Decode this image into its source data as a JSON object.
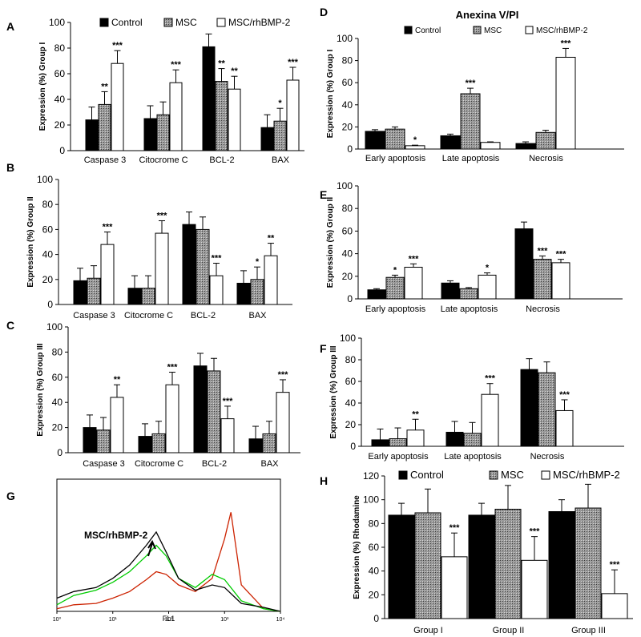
{
  "legend_labels": [
    "Control",
    "MSC",
    "MSC/rhBMP-2"
  ],
  "series_fills": [
    "#000000",
    "pattern-gray",
    "#ffffff"
  ],
  "chart_data": [
    {
      "panel": "A",
      "type": "bar",
      "title": "",
      "ylabel": "Expression (%) Group I",
      "ylim": [
        0,
        100
      ],
      "yticks": [
        0,
        20,
        40,
        60,
        80,
        100
      ],
      "categories": [
        "Caspase 3",
        "Citocrome C",
        "BCL-2",
        "BAX"
      ],
      "series": [
        {
          "name": "Control",
          "values": [
            24,
            25,
            81,
            18
          ],
          "errors": [
            10,
            10,
            10,
            10
          ]
        },
        {
          "name": "MSC",
          "values": [
            36,
            28,
            54,
            23
          ],
          "errors": [
            10,
            10,
            10,
            10
          ]
        },
        {
          "name": "MSC/rhBMP-2",
          "values": [
            68,
            53,
            48,
            55
          ],
          "errors": [
            10,
            10,
            10,
            10
          ]
        }
      ],
      "annotations": [
        [
          "",
          "**",
          "***"
        ],
        [
          "",
          "",
          "***"
        ],
        [
          "",
          "**",
          "**"
        ],
        [
          "",
          "*",
          "***"
        ]
      ],
      "legend": "top"
    },
    {
      "panel": "B",
      "type": "bar",
      "title": "",
      "ylabel": "Expression (%) Group II",
      "ylim": [
        0,
        100
      ],
      "yticks": [
        0,
        20,
        40,
        60,
        80,
        100
      ],
      "categories": [
        "Caspase 3",
        "Citocrome C",
        "BCL-2",
        "BAX"
      ],
      "series": [
        {
          "name": "Control",
          "values": [
            19,
            13,
            64,
            17
          ],
          "errors": [
            10,
            10,
            10,
            10
          ]
        },
        {
          "name": "MSC",
          "values": [
            21,
            13,
            60,
            20
          ],
          "errors": [
            10,
            10,
            10,
            10
          ]
        },
        {
          "name": "MSC/rhBMP-2",
          "values": [
            48,
            57,
            23,
            39
          ],
          "errors": [
            10,
            10,
            10,
            10
          ]
        }
      ],
      "annotations": [
        [
          "",
          "",
          "***"
        ],
        [
          "",
          "",
          "***"
        ],
        [
          "",
          "",
          "***"
        ],
        [
          "",
          "*",
          "**"
        ]
      ]
    },
    {
      "panel": "C",
      "type": "bar",
      "title": "",
      "ylabel": "Expression (%) Group III",
      "ylim": [
        0,
        100
      ],
      "yticks": [
        0,
        20,
        40,
        60,
        80,
        100
      ],
      "categories": [
        "Caspase 3",
        "Citocrome C",
        "BCL-2",
        "BAX"
      ],
      "series": [
        {
          "name": "Control",
          "values": [
            20,
            13,
            69,
            11
          ],
          "errors": [
            10,
            10,
            10,
            10
          ]
        },
        {
          "name": "MSC",
          "values": [
            18,
            15,
            65,
            15
          ],
          "errors": [
            10,
            10,
            10,
            10
          ]
        },
        {
          "name": "MSC/rhBMP-2",
          "values": [
            44,
            54,
            27,
            48
          ],
          "errors": [
            10,
            10,
            10,
            10
          ]
        }
      ],
      "annotations": [
        [
          "",
          "",
          "**"
        ],
        [
          "",
          "",
          "***"
        ],
        [
          "",
          "",
          "***"
        ],
        [
          "",
          "",
          "***"
        ]
      ]
    },
    {
      "panel": "D",
      "type": "bar",
      "title": "Anexina V/PI",
      "ylabel": "Expression (%) Group I",
      "ylim": [
        0,
        100
      ],
      "yticks": [
        0,
        20,
        40,
        60,
        80,
        100
      ],
      "categories": [
        "Early apoptosis",
        "Late apoptosis",
        "Necrosis"
      ],
      "series": [
        {
          "name": "Control",
          "values": [
            16,
            12,
            5
          ],
          "errors": [
            1.5,
            1.5,
            1.5
          ]
        },
        {
          "name": "MSC",
          "values": [
            18,
            50,
            15
          ],
          "errors": [
            2,
            5,
            2
          ]
        },
        {
          "name": "MSC/rhBMP-2",
          "values": [
            3,
            6,
            83
          ],
          "errors": [
            0.5,
            0.5,
            8
          ]
        }
      ],
      "annotations": [
        [
          "",
          "",
          "*"
        ],
        [
          "",
          "***",
          ""
        ],
        [
          "",
          "",
          "***"
        ]
      ],
      "legend": "top"
    },
    {
      "panel": "E",
      "type": "bar",
      "title": "",
      "ylabel": "Expression (%) Group II",
      "ylim": [
        0,
        100
      ],
      "yticks": [
        0,
        20,
        40,
        60,
        80,
        100
      ],
      "categories": [
        "Early apoptosis",
        "Late apoptosis",
        "Necrosis"
      ],
      "series": [
        {
          "name": "Control",
          "values": [
            8,
            14,
            62
          ],
          "errors": [
            1,
            2,
            6
          ]
        },
        {
          "name": "MSC",
          "values": [
            19,
            9,
            35
          ],
          "errors": [
            2,
            1,
            3
          ]
        },
        {
          "name": "MSC/rhBMP-2",
          "values": [
            28,
            21,
            32
          ],
          "errors": [
            3,
            2,
            3
          ]
        }
      ],
      "annotations": [
        [
          "",
          "*",
          "***"
        ],
        [
          "",
          "",
          "*"
        ],
        [
          "",
          "***",
          "***"
        ]
      ]
    },
    {
      "panel": "F",
      "type": "bar",
      "title": "",
      "ylabel": "Expression (%) Group III",
      "ylim": [
        0,
        100
      ],
      "yticks": [
        0,
        20,
        40,
        60,
        80,
        100
      ],
      "categories": [
        "Early apoptosis",
        "Late apoptosis",
        "Necrosis"
      ],
      "series": [
        {
          "name": "Control",
          "values": [
            6,
            13,
            71
          ],
          "errors": [
            10,
            10,
            10
          ]
        },
        {
          "name": "MSC",
          "values": [
            7,
            12,
            68
          ],
          "errors": [
            10,
            10,
            10
          ]
        },
        {
          "name": "MSC/rhBMP-2",
          "values": [
            15,
            48,
            33
          ],
          "errors": [
            10,
            10,
            10
          ]
        }
      ],
      "annotations": [
        [
          "",
          "",
          "**"
        ],
        [
          "",
          "",
          "***"
        ],
        [
          "",
          "",
          "***"
        ]
      ]
    },
    {
      "panel": "G",
      "type": "line",
      "title": "",
      "xlabel": "FL1",
      "ylabel": "",
      "x_scale": "log",
      "xticks": [
        "10⁰",
        "10¹",
        "10²",
        "10³",
        "10⁴"
      ],
      "annotation": "MSC/rhBMP-2",
      "series": [
        {
          "color": "#000000",
          "x": [
            1,
            2,
            5,
            10,
            20,
            40,
            60,
            90,
            150,
            300,
            600,
            1000,
            2000,
            5000,
            10000
          ],
          "y": [
            0.1,
            0.15,
            0.18,
            0.25,
            0.35,
            0.5,
            0.6,
            0.45,
            0.25,
            0.16,
            0.2,
            0.18,
            0.06,
            0.03,
            0.0
          ]
        },
        {
          "color": "#00cc00",
          "x": [
            1,
            2,
            5,
            10,
            20,
            40,
            60,
            90,
            150,
            300,
            600,
            1000,
            2000,
            5000,
            10000
          ],
          "y": [
            0.05,
            0.12,
            0.16,
            0.22,
            0.3,
            0.42,
            0.5,
            0.42,
            0.25,
            0.18,
            0.28,
            0.24,
            0.08,
            0.02,
            0.0
          ]
        },
        {
          "color": "#cc2200",
          "x": [
            1,
            2,
            5,
            10,
            20,
            40,
            60,
            90,
            150,
            300,
            600,
            1000,
            1300,
            2000,
            5000,
            10000
          ],
          "y": [
            0.02,
            0.05,
            0.06,
            0.1,
            0.15,
            0.24,
            0.3,
            0.28,
            0.2,
            0.15,
            0.25,
            0.55,
            0.75,
            0.2,
            0.02,
            0.0
          ]
        }
      ]
    },
    {
      "panel": "H",
      "type": "bar",
      "title": "",
      "ylabel": "Expression (%) Rhodamine",
      "ylim": [
        0,
        120
      ],
      "yticks": [
        0,
        20,
        40,
        60,
        80,
        100,
        120
      ],
      "categories": [
        "Group I",
        "Group II",
        "Group III"
      ],
      "series": [
        {
          "name": "Control",
          "values": [
            87,
            87,
            90
          ],
          "errors": [
            10,
            10,
            10
          ]
        },
        {
          "name": "MSC",
          "values": [
            89,
            92,
            93
          ],
          "errors": [
            20,
            20,
            20
          ]
        },
        {
          "name": "MSC/rhBMP-2",
          "values": [
            52,
            49,
            21
          ],
          "errors": [
            20,
            20,
            20
          ]
        }
      ],
      "annotations": [
        [
          "",
          "",
          "***"
        ],
        [
          "",
          "",
          "***"
        ],
        [
          "",
          "",
          "***"
        ]
      ],
      "legend": "top"
    }
  ]
}
